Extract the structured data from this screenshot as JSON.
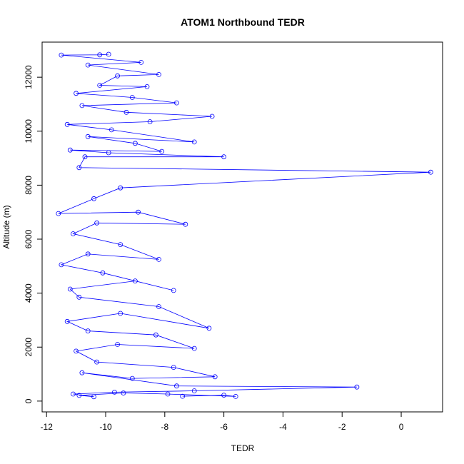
{
  "chart_data": {
    "type": "scatter",
    "title": "ATOM1 Northbound TEDR",
    "xlabel": "TEDR",
    "ylabel": "Altitude (m)",
    "xlim": [
      -12.15,
      1.4
    ],
    "ylim": [
      -400,
      13300
    ],
    "xticks": [
      "-12",
      "-10",
      "-8",
      "-6",
      "-4",
      "-2",
      "0"
    ],
    "yticks": [
      "0",
      "2000",
      "4000",
      "6000",
      "8000",
      "10000",
      "12000"
    ],
    "grid": false,
    "legend": "none",
    "marker": "open-circle",
    "connected": true,
    "series_color": "#0000ff",
    "series": [
      {
        "values": [
          {
            "x": -7.4,
            "y": 180
          },
          {
            "x": -6.0,
            "y": 220
          },
          {
            "x": -5.6,
            "y": 170
          },
          {
            "x": -7.9,
            "y": 260
          },
          {
            "x": -9.4,
            "y": 300
          },
          {
            "x": -10.9,
            "y": 210
          },
          {
            "x": -10.4,
            "y": 160
          },
          {
            "x": -11.1,
            "y": 260
          },
          {
            "x": -9.7,
            "y": 330
          },
          {
            "x": -7.0,
            "y": 380
          },
          {
            "x": -1.5,
            "y": 520
          },
          {
            "x": -7.6,
            "y": 560
          },
          {
            "x": -10.8,
            "y": 1050
          },
          {
            "x": -9.1,
            "y": 840
          },
          {
            "x": -6.3,
            "y": 900
          },
          {
            "x": -7.7,
            "y": 1250
          },
          {
            "x": -10.3,
            "y": 1450
          },
          {
            "x": -11.0,
            "y": 1850
          },
          {
            "x": -9.6,
            "y": 2100
          },
          {
            "x": -7.0,
            "y": 1950
          },
          {
            "x": -8.3,
            "y": 2450
          },
          {
            "x": -10.6,
            "y": 2600
          },
          {
            "x": -11.3,
            "y": 2950
          },
          {
            "x": -9.5,
            "y": 3250
          },
          {
            "x": -6.5,
            "y": 2700
          },
          {
            "x": -8.2,
            "y": 3500
          },
          {
            "x": -10.9,
            "y": 3850
          },
          {
            "x": -11.2,
            "y": 4150
          },
          {
            "x": -9.0,
            "y": 4450
          },
          {
            "x": -7.7,
            "y": 4100
          },
          {
            "x": -10.1,
            "y": 4750
          },
          {
            "x": -11.5,
            "y": 5050
          },
          {
            "x": -10.6,
            "y": 5450
          },
          {
            "x": -8.2,
            "y": 5250
          },
          {
            "x": -9.5,
            "y": 5800
          },
          {
            "x": -11.1,
            "y": 6200
          },
          {
            "x": -10.3,
            "y": 6600
          },
          {
            "x": -7.3,
            "y": 6550
          },
          {
            "x": -8.9,
            "y": 7000
          },
          {
            "x": -11.6,
            "y": 6950
          },
          {
            "x": -10.4,
            "y": 7500
          },
          {
            "x": -9.5,
            "y": 7900
          },
          {
            "x": 1.0,
            "y": 8480
          },
          {
            "x": -10.9,
            "y": 8650
          },
          {
            "x": -10.7,
            "y": 9050
          },
          {
            "x": -6.0,
            "y": 9050
          },
          {
            "x": -9.9,
            "y": 9200
          },
          {
            "x": -11.2,
            "y": 9300
          },
          {
            "x": -8.1,
            "y": 9250
          },
          {
            "x": -9.0,
            "y": 9550
          },
          {
            "x": -10.6,
            "y": 9800
          },
          {
            "x": -7.0,
            "y": 9600
          },
          {
            "x": -9.8,
            "y": 10050
          },
          {
            "x": -11.3,
            "y": 10250
          },
          {
            "x": -8.5,
            "y": 10350
          },
          {
            "x": -6.4,
            "y": 10550
          },
          {
            "x": -9.3,
            "y": 10700
          },
          {
            "x": -10.8,
            "y": 10950
          },
          {
            "x": -7.6,
            "y": 11050
          },
          {
            "x": -9.1,
            "y": 11250
          },
          {
            "x": -11.0,
            "y": 11400
          },
          {
            "x": -8.6,
            "y": 11650
          },
          {
            "x": -10.2,
            "y": 11700
          },
          {
            "x": -9.6,
            "y": 12050
          },
          {
            "x": -8.2,
            "y": 12100
          },
          {
            "x": -10.6,
            "y": 12450
          },
          {
            "x": -8.8,
            "y": 12550
          },
          {
            "x": -11.5,
            "y": 12820
          },
          {
            "x": -10.2,
            "y": 12830
          },
          {
            "x": -9.9,
            "y": 12850
          }
        ]
      }
    ]
  }
}
